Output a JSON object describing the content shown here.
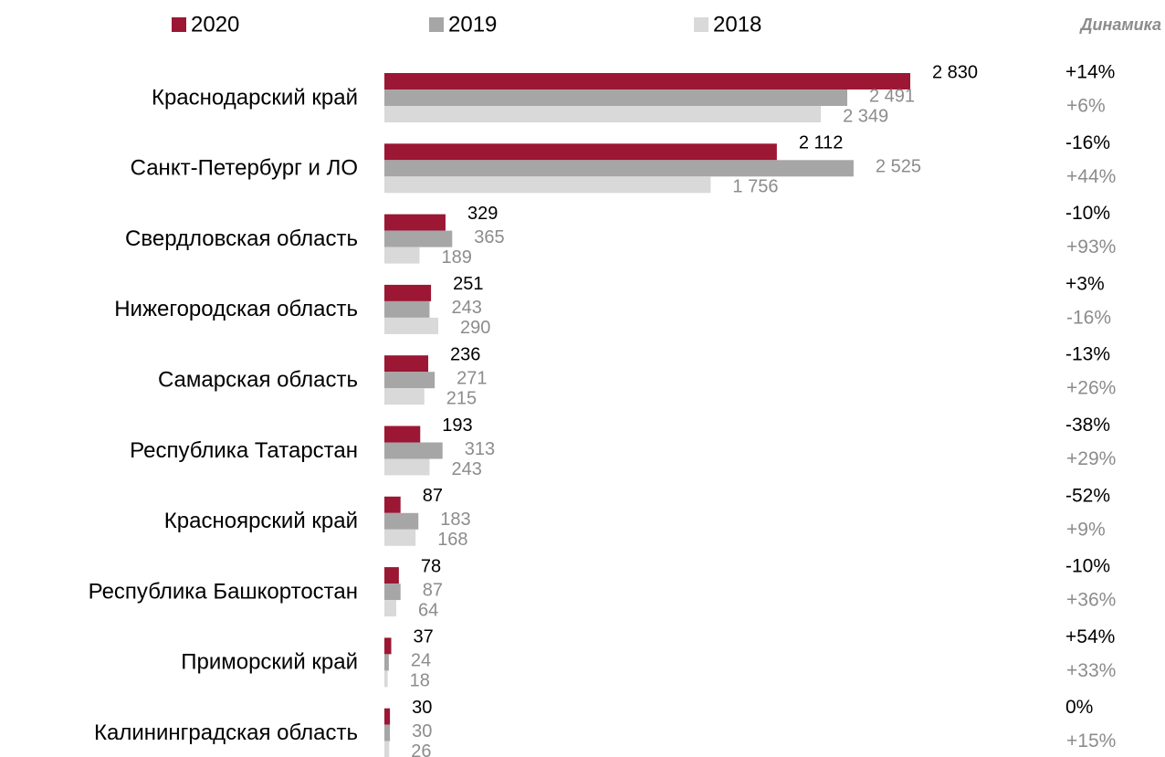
{
  "chart_data": {
    "type": "bar",
    "orientation": "horizontal",
    "categories": [
      "Краснодарский край",
      "Санкт-Петербург и ЛО",
      "Свердловская область",
      "Нижегородская область",
      "Самарская область",
      "Республика Татарстан",
      "Красноярский край",
      "Республика Башкортостан",
      "Приморский край",
      "Калининградская область"
    ],
    "series": [
      {
        "name": "2020",
        "color": "#9b1734",
        "label_color": "#000000",
        "values": [
          2830,
          2112,
          329,
          251,
          236,
          193,
          87,
          78,
          37,
          30
        ],
        "value_labels": [
          "2 830",
          "2 112",
          "329",
          "251",
          "236",
          "193",
          "87",
          "78",
          "37",
          "30"
        ]
      },
      {
        "name": "2019",
        "color": "#a6a6a6",
        "label_color": "#8c8c8c",
        "values": [
          2491,
          2525,
          365,
          243,
          271,
          313,
          183,
          87,
          24,
          30
        ],
        "value_labels": [
          "2 491",
          "2 525",
          "365",
          "243",
          "271",
          "313",
          "183",
          "87",
          "24",
          "30"
        ]
      },
      {
        "name": "2018",
        "color": "#d9d9d9",
        "label_color": "#8c8c8c",
        "values": [
          2349,
          1756,
          189,
          290,
          215,
          243,
          168,
          64,
          18,
          26
        ],
        "value_labels": [
          "2 349",
          "1 756",
          "189",
          "290",
          "215",
          "243",
          "168",
          "64",
          "18",
          "26"
        ]
      }
    ],
    "dynamics_title": "Динамика",
    "dynamics_top": [
      "+14%",
      "-16%",
      "-10%",
      "+3%",
      "-13%",
      "-38%",
      "-52%",
      "-10%",
      "+54%",
      "0%"
    ],
    "dynamics_bottom": [
      "+6%",
      "+44%",
      "+93%",
      "-16%",
      "+26%",
      "+29%",
      "+9%",
      "+36%",
      "+33%",
      "+15%"
    ],
    "legend": "top"
  }
}
